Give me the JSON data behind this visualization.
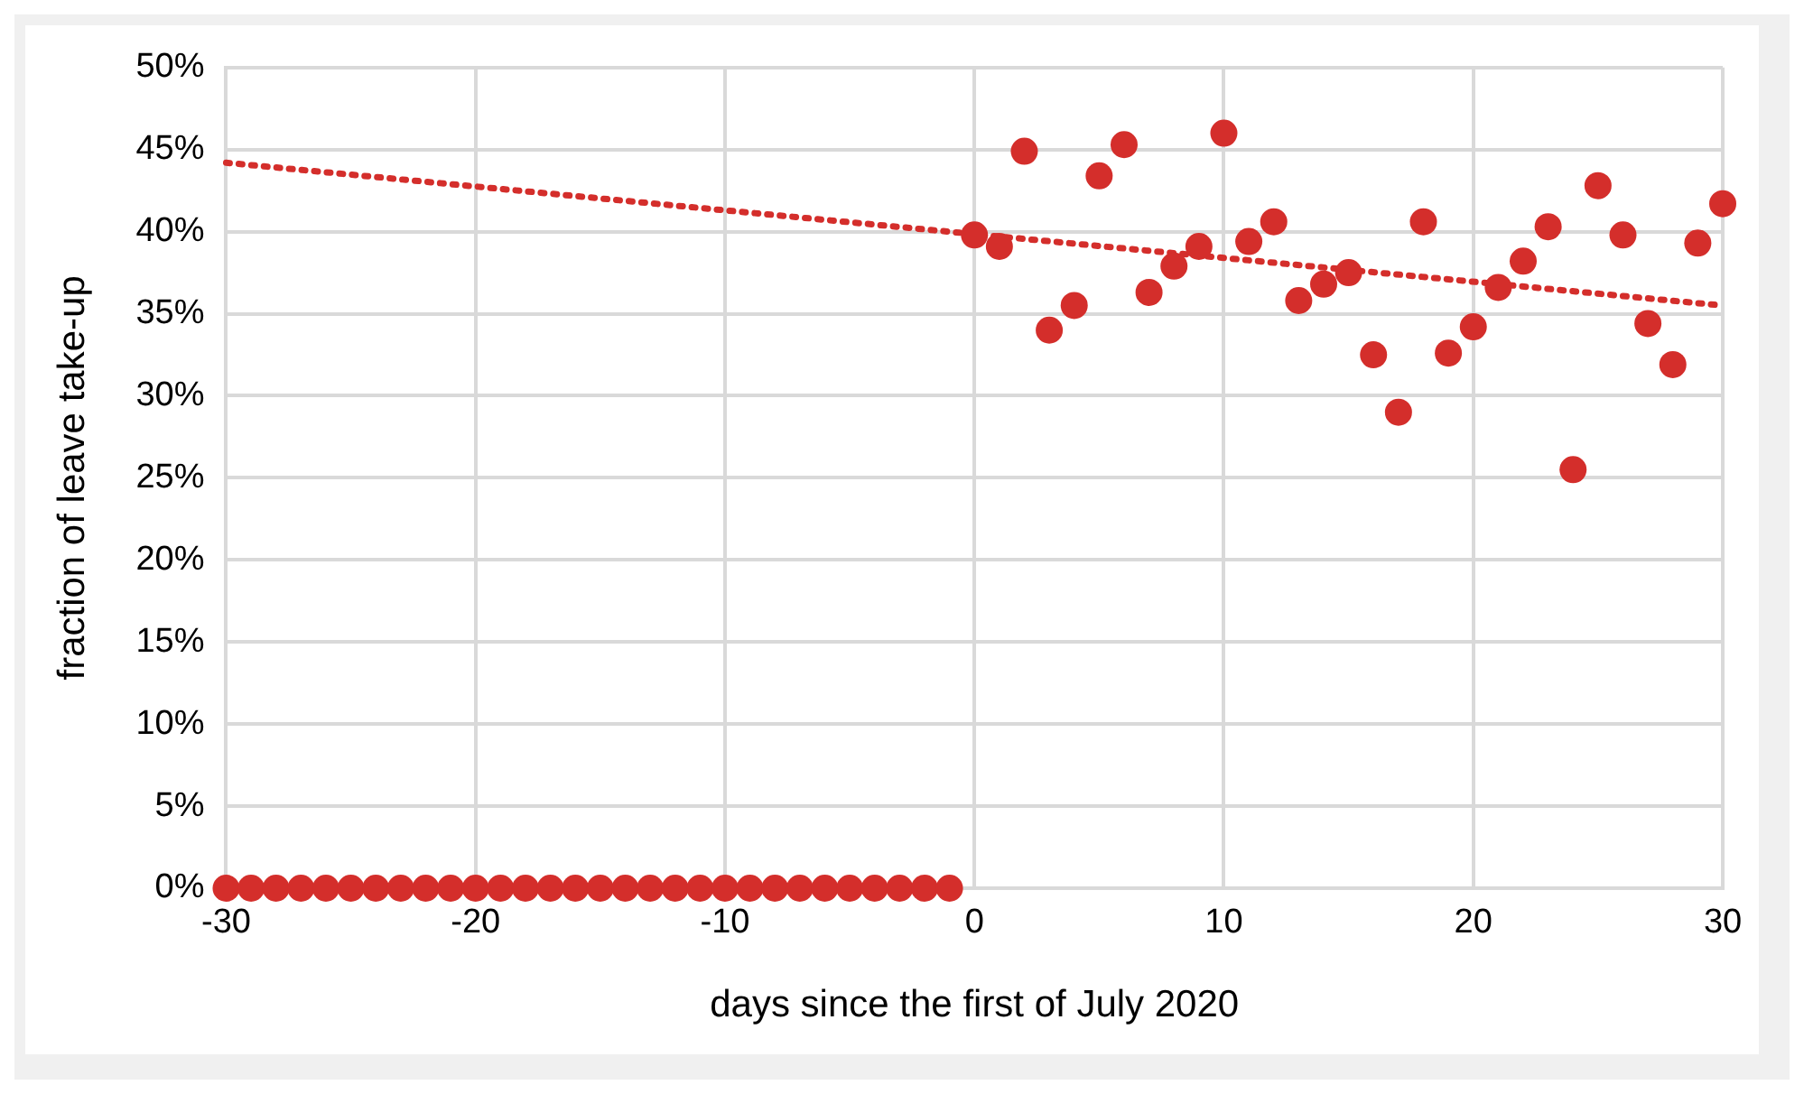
{
  "chart_data": {
    "type": "scatter",
    "xlabel": "days since the first of July 2020",
    "ylabel": "fraction of leave take-up",
    "xlim": [
      -30,
      30
    ],
    "xticks": [
      -30,
      -20,
      -10,
      0,
      10,
      20,
      30
    ],
    "ylim": [
      0,
      50
    ],
    "yticks": [
      {
        "value": 0,
        "label": "0%"
      },
      {
        "value": 5,
        "label": "5%"
      },
      {
        "value": 10,
        "label": "10%"
      },
      {
        "value": 15,
        "label": "15%"
      },
      {
        "value": 20,
        "label": "20%"
      },
      {
        "value": 25,
        "label": "25%"
      },
      {
        "value": 30,
        "label": "30%"
      },
      {
        "value": 35,
        "label": "35%"
      },
      {
        "value": 40,
        "label": "40%"
      },
      {
        "value": 45,
        "label": "45%"
      },
      {
        "value": 50,
        "label": "50%"
      }
    ],
    "grid": true,
    "legend": false,
    "marker": "circle",
    "series": [
      {
        "color": "#d42e2b",
        "x": [
          -30,
          -29,
          -28,
          -27,
          -26,
          -25,
          -24,
          -23,
          -22,
          -21,
          -20,
          -19,
          -18,
          -17,
          -16,
          -15,
          -14,
          -13,
          -12,
          -11,
          -10,
          -9,
          -8,
          -7,
          -6,
          -5,
          -4,
          -3,
          -2,
          -1,
          0,
          1,
          2,
          3,
          4,
          5,
          6,
          7,
          8,
          9,
          10,
          11,
          12,
          13,
          14,
          15,
          16,
          17,
          18,
          19,
          20,
          21,
          22,
          23,
          24,
          25,
          26,
          27,
          28,
          29,
          30
        ],
        "values": [
          0,
          0,
          0,
          0,
          0,
          0,
          0,
          0,
          0,
          0,
          0,
          0,
          0,
          0,
          0,
          0,
          0,
          0,
          0,
          0,
          0,
          0,
          0,
          0,
          0,
          0,
          0,
          0,
          0,
          0,
          39.8,
          39.1,
          44.9,
          34.0,
          35.5,
          43.4,
          45.3,
          36.3,
          37.9,
          39.1,
          46.0,
          39.4,
          40.6,
          35.8,
          36.8,
          37.5,
          32.5,
          29.0,
          40.6,
          32.6,
          34.2,
          36.6,
          38.2,
          40.3,
          25.5,
          42.8,
          39.8,
          34.4,
          31.9,
          39.3,
          41.7
        ]
      },
      {
        "type": "line",
        "color": "#d42e2b",
        "line_style": "dotted",
        "marker": "none",
        "x": [
          -30,
          30
        ],
        "values": [
          44.2,
          35.5
        ]
      }
    ]
  }
}
